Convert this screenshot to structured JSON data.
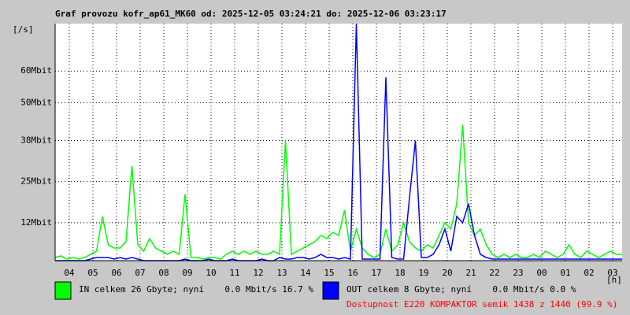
{
  "chart_data": {
    "type": "line",
    "title": "Graf provozu kofr_ap61_MK60 od: 2025-12-05 03:24:21 do: 2025-12-06 03:23:17",
    "y_axis_label": "[/s]",
    "x_axis_label": "[h]",
    "note": "Dostupnost E220 KOMPAKTOR semik 1438 z 1440 (99.9 %)",
    "xlim": [
      0,
      24
    ],
    "xticks": [
      {
        "value": 0.6,
        "label": "04"
      },
      {
        "value": 1.6,
        "label": "05"
      },
      {
        "value": 2.6,
        "label": "06"
      },
      {
        "value": 3.6,
        "label": "07"
      },
      {
        "value": 4.6,
        "label": "08"
      },
      {
        "value": 5.6,
        "label": "09"
      },
      {
        "value": 6.6,
        "label": "10"
      },
      {
        "value": 7.6,
        "label": "11"
      },
      {
        "value": 8.6,
        "label": "12"
      },
      {
        "value": 9.6,
        "label": "13"
      },
      {
        "value": 10.6,
        "label": "14"
      },
      {
        "value": 11.6,
        "label": "15"
      },
      {
        "value": 12.6,
        "label": "16"
      },
      {
        "value": 13.6,
        "label": "17"
      },
      {
        "value": 14.6,
        "label": "18"
      },
      {
        "value": 15.6,
        "label": "19"
      },
      {
        "value": 16.6,
        "label": "20"
      },
      {
        "value": 17.6,
        "label": "21"
      },
      {
        "value": 18.6,
        "label": "22"
      },
      {
        "value": 19.6,
        "label": "23"
      },
      {
        "value": 20.6,
        "label": "00"
      },
      {
        "value": 21.6,
        "label": "01"
      },
      {
        "value": 22.6,
        "label": "02"
      },
      {
        "value": 23.6,
        "label": "03"
      }
    ],
    "ylim": [
      0,
      75
    ],
    "yticks": [
      {
        "value": 12,
        "label": "12Mbit"
      },
      {
        "value": 25,
        "label": "25Mbit"
      },
      {
        "value": 38,
        "label": "38Mbit"
      },
      {
        "value": 50,
        "label": "50Mbit"
      },
      {
        "value": 60,
        "label": "60Mbit"
      }
    ],
    "grid": true,
    "x": [
      0,
      0.25,
      0.5,
      0.75,
      1,
      1.25,
      1.5,
      1.75,
      2,
      2.25,
      2.5,
      2.75,
      3,
      3.25,
      3.5,
      3.75,
      4,
      4.25,
      4.5,
      4.75,
      5,
      5.25,
      5.5,
      5.75,
      6,
      6.25,
      6.5,
      6.75,
      7,
      7.25,
      7.5,
      7.75,
      8,
      8.25,
      8.5,
      8.75,
      9,
      9.25,
      9.5,
      9.75,
      10,
      10.25,
      10.5,
      10.75,
      11,
      11.25,
      11.5,
      11.75,
      12,
      12.25,
      12.5,
      12.75,
      13,
      13.25,
      13.5,
      13.75,
      14,
      14.25,
      14.5,
      14.75,
      15,
      15.25,
      15.5,
      15.75,
      16,
      16.25,
      16.5,
      16.75,
      17,
      17.25,
      17.5,
      17.75,
      18,
      18.25,
      18.5,
      18.75,
      19,
      19.25,
      19.5,
      19.75,
      20,
      20.25,
      20.5,
      20.75,
      21,
      21.25,
      21.5,
      21.75,
      22,
      22.25,
      22.5,
      22.75,
      23,
      23.25,
      23.5,
      23.75,
      24
    ],
    "series": [
      {
        "name": "IN celkem 26 Gbyte; nyní    0.0 Mbit/s 16.7 %",
        "color": "#00ff00",
        "values": [
          1,
          1.5,
          0.5,
          1,
          0.5,
          1,
          2,
          3,
          14,
          5,
          4,
          4,
          6,
          30,
          5,
          3,
          7,
          4,
          3,
          2,
          3,
          2,
          21,
          1,
          1,
          0.5,
          1,
          1,
          0.5,
          2,
          3,
          2,
          3,
          2,
          3,
          2,
          2,
          3,
          2,
          38,
          2,
          3,
          4,
          5,
          6,
          8,
          7,
          9,
          8,
          16,
          3,
          10,
          4,
          2,
          1,
          2,
          10,
          3,
          5,
          12,
          6,
          4,
          3,
          5,
          4,
          8,
          12,
          10,
          18,
          43,
          12,
          8,
          10,
          5,
          2,
          1,
          2,
          1,
          2,
          1,
          1,
          2,
          1,
          3,
          2,
          1,
          2,
          5,
          2,
          1,
          3,
          2,
          1,
          2,
          3,
          2,
          2
        ]
      },
      {
        "name": "OUT celkem 8 Gbyte; nyní    0.0 Mbit/s 0.0 %",
        "color": "#0000ff",
        "values": [
          0,
          0,
          0,
          0,
          0,
          0,
          0.5,
          1,
          1,
          1,
          0.5,
          1,
          0.5,
          1,
          0.5,
          0,
          0,
          0,
          0,
          0,
          0,
          0,
          0.5,
          0,
          0,
          0,
          0.5,
          0,
          0,
          0,
          0.5,
          0,
          0,
          0,
          0,
          0.5,
          0,
          0,
          1,
          0.5,
          0.5,
          1,
          1,
          0.5,
          1,
          2,
          1,
          1,
          0.5,
          1,
          0.5,
          75,
          0.5,
          0.5,
          0.5,
          0.5,
          58,
          1,
          0.5,
          0.5,
          20,
          38,
          1,
          1,
          2,
          5,
          10,
          3,
          14,
          12,
          18,
          8,
          2,
          1,
          0.5,
          0.5,
          0.5,
          0.5,
          0.5,
          0.5,
          0.5,
          0.5,
          0.5,
          0.5,
          0.5,
          0.5,
          0.5,
          0.5,
          0.5,
          0.5,
          0.5,
          0.5,
          0.5,
          0.5,
          0.5,
          0.5,
          0.5
        ]
      }
    ]
  }
}
